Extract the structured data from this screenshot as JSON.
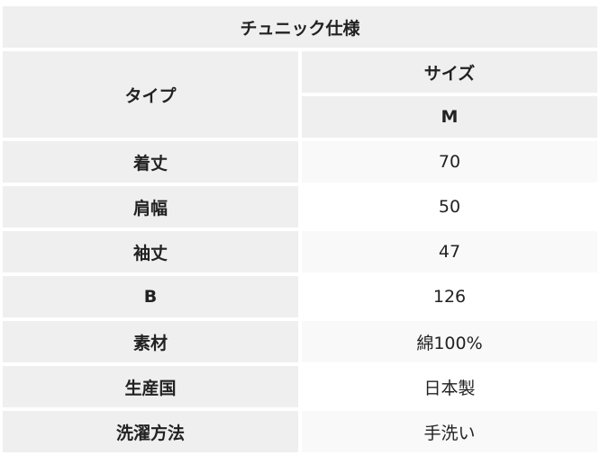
{
  "title": "チュニック仕様",
  "header": {
    "type_label": "タイプ",
    "size_label": "サイズ",
    "size_value": "M"
  },
  "rows": [
    {
      "label": "着丈",
      "value": "70"
    },
    {
      "label": "肩幅",
      "value": "50"
    },
    {
      "label": "袖丈",
      "value": "47"
    },
    {
      "label": "B",
      "value": "126"
    },
    {
      "label": "素材",
      "value": "綿100%"
    },
    {
      "label": "生産国",
      "value": "日本製"
    },
    {
      "label": "洗濯方法",
      "value": "手洗い"
    }
  ]
}
